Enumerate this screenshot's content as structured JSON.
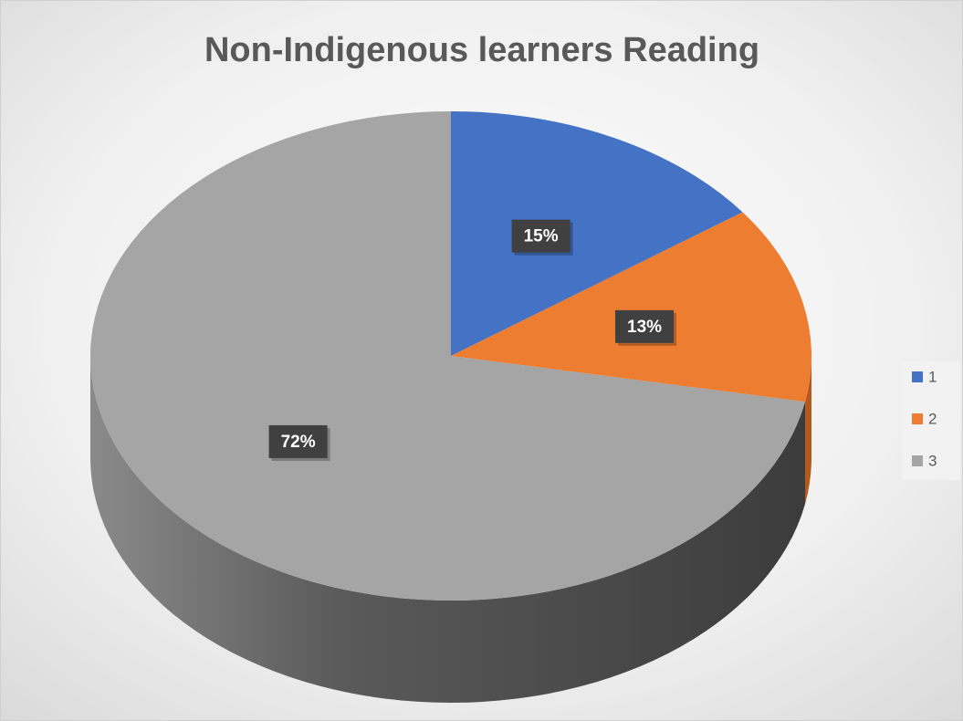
{
  "chart_data": {
    "type": "pie3d",
    "title": "Non-Indigenous learners Reading",
    "categories": [
      "1",
      "2",
      "3"
    ],
    "values": [
      15,
      13,
      72
    ],
    "value_labels": [
      "15%",
      "13%",
      "72%"
    ],
    "colors": [
      "#4472c4",
      "#ed7d31",
      "#a5a5a5"
    ],
    "legend": "right"
  }
}
